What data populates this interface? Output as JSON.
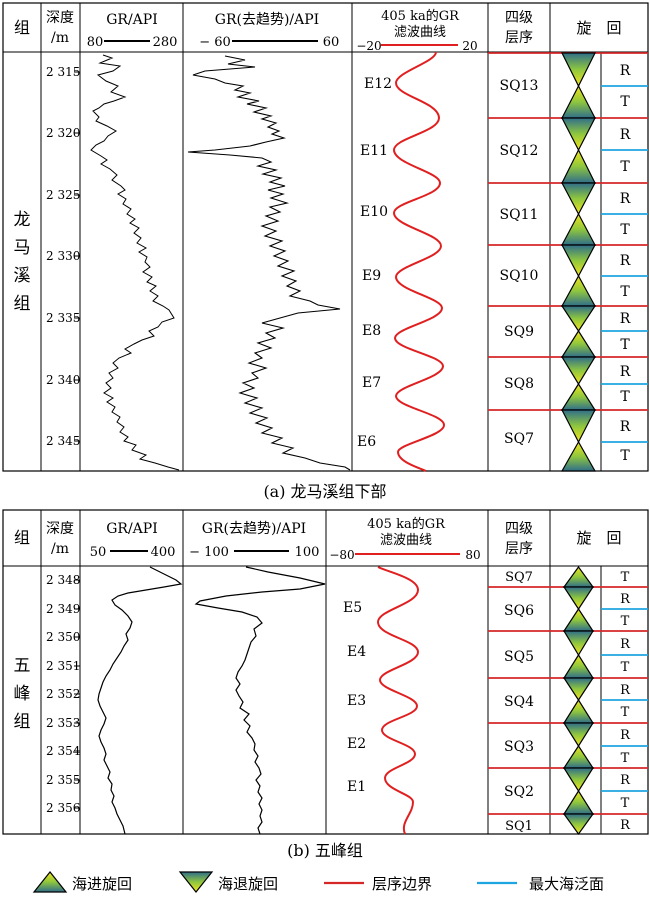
{
  "panel_a": {
    "caption": "(a) 龙马溪组下部",
    "headers": {
      "zu": "组",
      "depth_1": "深度",
      "depth_2": "/m",
      "gr": "GR/API",
      "gr_min": "80",
      "gr_max": "280",
      "grd": "GR(去趋势)/API",
      "grd_min": "− 60",
      "grd_max": "60",
      "filt_1": "405 ka的GR",
      "filt_2": "滤波曲线",
      "filt_min": "−20",
      "filt_max": "20",
      "seq_1": "四级",
      "seq_2": "层序",
      "cycle": "旋　回"
    },
    "formation": [
      "龙",
      "马",
      "溪",
      "组"
    ],
    "depths": [
      "2 315",
      "2 320",
      "2 325",
      "2 330",
      "2 335",
      "2 340",
      "2 345"
    ],
    "e_labels": [
      "E12",
      "E11",
      "E10",
      "E9",
      "E8",
      "E7",
      "E6"
    ],
    "sequences": [
      "SQ13",
      "SQ12",
      "SQ11",
      "SQ10",
      "SQ9",
      "SQ8",
      "SQ7"
    ],
    "rt": [
      "R",
      "T",
      "R",
      "T",
      "R",
      "T",
      "R",
      "T",
      "R",
      "T",
      "R",
      "T",
      "R",
      "T"
    ]
  },
  "panel_b": {
    "caption": "(b) 五峰组",
    "headers": {
      "zu": "组",
      "depth_1": "深度",
      "depth_2": "/m",
      "gr": "GR/API",
      "gr_min": "50",
      "gr_max": "400",
      "grd": "GR(去趋势)/API",
      "grd_min": "− 100",
      "grd_max": "100",
      "filt_1": "405 ka的GR",
      "filt_2": "滤波曲线",
      "filt_min": "−80",
      "filt_max": "80",
      "seq_1": "四级",
      "seq_2": "层序",
      "cycle": "旋　回"
    },
    "formation": [
      "五",
      "峰",
      "组"
    ],
    "depths": [
      "2 348",
      "2 349",
      "2 350",
      "2 351",
      "2 352",
      "2 353",
      "2 354",
      "2 355",
      "2 356"
    ],
    "e_labels": [
      "E5",
      "E4",
      "E3",
      "E2",
      "E1"
    ],
    "sequences": [
      "SQ7",
      "SQ6",
      "SQ5",
      "SQ4",
      "SQ3",
      "SQ2",
      "SQ1"
    ],
    "rt": [
      "T",
      "R",
      "T",
      "R",
      "T",
      "R",
      "T",
      "R",
      "T",
      "R",
      "T",
      "R",
      "T",
      "R"
    ]
  },
  "legend": {
    "transgressive": "海进旋回",
    "regressive": "海退旋回",
    "boundary": "层序边界",
    "mfs": "最大海泛面"
  },
  "colors": {
    "boundary": "#d62728",
    "mfs": "#1fa5e0",
    "filter_curve": "#e02020",
    "triangle_top": "#2f6e8a",
    "triangle_mid": "#8ec63f",
    "triangle_bottom": "#f2e51b"
  }
}
